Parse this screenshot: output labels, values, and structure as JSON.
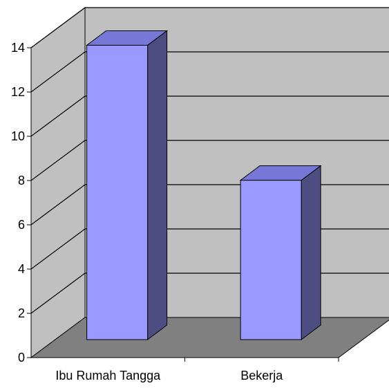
{
  "chart_data": {
    "type": "bar",
    "style": "3d-column",
    "categories": [
      "Ibu Rumah Tangga",
      "Bekerja"
    ],
    "values": [
      13.3,
      7.2
    ],
    "ylim": [
      0,
      14
    ],
    "yticks": [
      "0",
      "2",
      "4",
      "6",
      "8",
      "10",
      "12",
      "14"
    ],
    "grid": true,
    "legend": "none",
    "colors": {
      "bar_front": "#9999ff",
      "bar_top": "#7777d8",
      "bar_side": "#4d4d82",
      "back_wall": "#c0c0c0",
      "side_wall": "#c0c0c0",
      "floor": "#808080",
      "gridline": "#000000"
    }
  }
}
